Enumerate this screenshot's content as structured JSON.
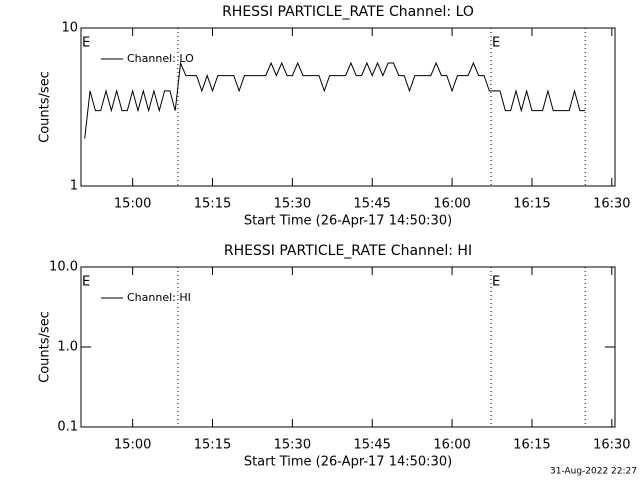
{
  "chart_data": [
    {
      "type": "line",
      "title": "RHESSI PARTICLE_RATE Channel: LO",
      "xlabel": "Start Time (26-Apr-17 14:50:30)",
      "ylabel": "Counts/sec",
      "log_y": true,
      "ylim": [
        1,
        10
      ],
      "yticks": [
        1,
        10
      ],
      "xlim": [
        890.3,
        990.6
      ],
      "xticks": [
        {
          "value": 900,
          "label": "15:00"
        },
        {
          "value": 915,
          "label": "15:15"
        },
        {
          "value": 930,
          "label": "15:30"
        },
        {
          "value": 945,
          "label": "15:45"
        },
        {
          "value": 960,
          "label": "16:00"
        },
        {
          "value": 975,
          "label": "16:15"
        },
        {
          "value": 990,
          "label": "16:30"
        }
      ],
      "vlines": [
        908.5,
        967.3,
        985
      ],
      "annotations": [
        {
          "x": 890.3,
          "label": "E"
        },
        {
          "x": 967.3,
          "label": "E"
        }
      ],
      "legend": "upper left",
      "series": [
        {
          "name": "Channel: LO",
          "color": "#000000",
          "x": [
            891,
            892,
            893,
            894,
            895,
            896,
            897,
            898,
            899,
            900,
            901,
            902,
            903,
            904,
            905,
            906,
            907,
            908,
            909,
            910,
            911,
            912,
            913,
            914,
            915,
            916,
            917,
            918,
            919,
            920,
            921,
            922,
            923,
            924,
            925,
            926,
            927,
            928,
            929,
            930,
            931,
            932,
            933,
            934,
            935,
            936,
            937,
            938,
            939,
            940,
            941,
            942,
            943,
            944,
            945,
            946,
            947,
            948,
            949,
            950,
            951,
            952,
            953,
            954,
            955,
            956,
            957,
            958,
            959,
            960,
            961,
            962,
            963,
            964,
            965,
            966,
            967,
            968,
            969,
            970,
            971,
            972,
            973,
            974,
            975,
            976,
            977,
            978,
            979,
            980,
            981,
            982,
            983,
            984,
            985
          ],
          "values": [
            2,
            4,
            3,
            3,
            4,
            3,
            4,
            3,
            3,
            4,
            3,
            4,
            3,
            4,
            3,
            4,
            4,
            3,
            6,
            5,
            5,
            5,
            4,
            5,
            4,
            5,
            5,
            5,
            5,
            4,
            5,
            5,
            5,
            5,
            5,
            6,
            5,
            6,
            5,
            5,
            6,
            5,
            5,
            5,
            5,
            4,
            5,
            5,
            5,
            5,
            6,
            5,
            5,
            6,
            5,
            6,
            5,
            6,
            6,
            5,
            5,
            4,
            5,
            5,
            5,
            5,
            6,
            5,
            5,
            4,
            5,
            5,
            5,
            6,
            5,
            5,
            4,
            4,
            4,
            3,
            3,
            4,
            3,
            4,
            3,
            3,
            3,
            4,
            3,
            3,
            3,
            3,
            4,
            3,
            3
          ]
        }
      ]
    },
    {
      "type": "line",
      "title": "RHESSI PARTICLE_RATE Channel: HI",
      "xlabel": "Start Time (26-Apr-17 14:50:30)",
      "ylabel": "Counts/sec",
      "log_y": true,
      "ylim": [
        0.1,
        10
      ],
      "yticks": [
        0.1,
        {
          "value": 1,
          "label": "1.0"
        },
        {
          "value": 10,
          "label": "10.0"
        }
      ],
      "xlim": [
        890.3,
        990.6
      ],
      "xticks": [
        {
          "value": 900,
          "label": "15:00"
        },
        {
          "value": 915,
          "label": "15:15"
        },
        {
          "value": 930,
          "label": "15:30"
        },
        {
          "value": 945,
          "label": "15:45"
        },
        {
          "value": 960,
          "label": "16:00"
        },
        {
          "value": 975,
          "label": "16:15"
        },
        {
          "value": 990,
          "label": "16:30"
        }
      ],
      "vlines": [
        908.5,
        967.3,
        985
      ],
      "annotations": [
        {
          "x": 890.3,
          "label": "E"
        },
        {
          "x": 967.3,
          "label": "E"
        }
      ],
      "legend": "upper left",
      "series": [
        {
          "name": "Channel: HI",
          "color": "#000000",
          "x": [],
          "values": []
        }
      ]
    }
  ],
  "footer": "31-Aug-2022 22:27"
}
